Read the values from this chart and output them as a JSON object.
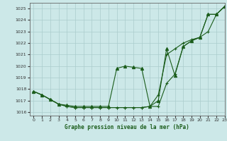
{
  "title": "Graphe pression niveau de la mer (hPa)",
  "background_color": "#cce8e8",
  "grid_color": "#aacccc",
  "line_color": "#1a5c1a",
  "xlim": [
    -0.5,
    23
  ],
  "ylim": [
    1015.7,
    1025.5
  ],
  "yticks": [
    1016,
    1017,
    1018,
    1019,
    1020,
    1021,
    1022,
    1023,
    1024,
    1025
  ],
  "xticks": [
    0,
    1,
    2,
    3,
    4,
    5,
    6,
    7,
    8,
    9,
    10,
    11,
    12,
    13,
    14,
    15,
    16,
    17,
    18,
    19,
    20,
    21,
    22,
    23
  ],
  "series": [
    {
      "x": [
        0,
        1,
        2,
        3,
        4,
        5,
        6,
        7,
        8,
        9,
        10,
        11,
        12,
        13,
        14,
        15,
        16,
        17,
        18,
        19,
        20,
        21,
        22,
        23
      ],
      "y": [
        1017.8,
        1017.5,
        1017.1,
        1016.7,
        1016.5,
        1016.4,
        1016.4,
        1016.4,
        1016.4,
        1016.4,
        1016.4,
        1016.4,
        1016.4,
        1016.4,
        1016.5,
        1016.5,
        1018.5,
        1019.3,
        1021.7,
        1022.2,
        1022.5,
        1024.5,
        1024.5,
        1025.2
      ],
      "marker": "+"
    },
    {
      "x": [
        0,
        1,
        2,
        3,
        4,
        5,
        6,
        7,
        8,
        9,
        10,
        11,
        12,
        13,
        14,
        15,
        16,
        17,
        18,
        19,
        20,
        21,
        22,
        23
      ],
      "y": [
        1017.8,
        1017.5,
        1017.1,
        1016.7,
        1016.5,
        1016.4,
        1016.4,
        1016.4,
        1016.4,
        1016.4,
        1016.4,
        1016.4,
        1016.4,
        1016.4,
        1016.5,
        1017.5,
        1021.0,
        1021.5,
        1022.0,
        1022.3,
        1022.5,
        1023.0,
        1024.5,
        1025.2
      ],
      "marker": "+"
    },
    {
      "x": [
        0,
        1,
        2,
        3,
        4,
        5,
        6,
        7,
        8,
        9,
        10,
        11,
        12,
        13,
        14,
        15,
        16,
        17,
        18,
        19,
        20,
        21,
        22,
        23
      ],
      "y": [
        1017.8,
        1017.5,
        1017.1,
        1016.7,
        1016.6,
        1016.5,
        1016.5,
        1016.5,
        1016.5,
        1016.5,
        1019.8,
        1020.0,
        1019.9,
        1019.8,
        1016.5,
        1017.0,
        1021.5,
        1019.2,
        1021.7,
        1022.2,
        1022.5,
        1024.5,
        1024.5,
        1025.2
      ],
      "marker": "^"
    }
  ]
}
